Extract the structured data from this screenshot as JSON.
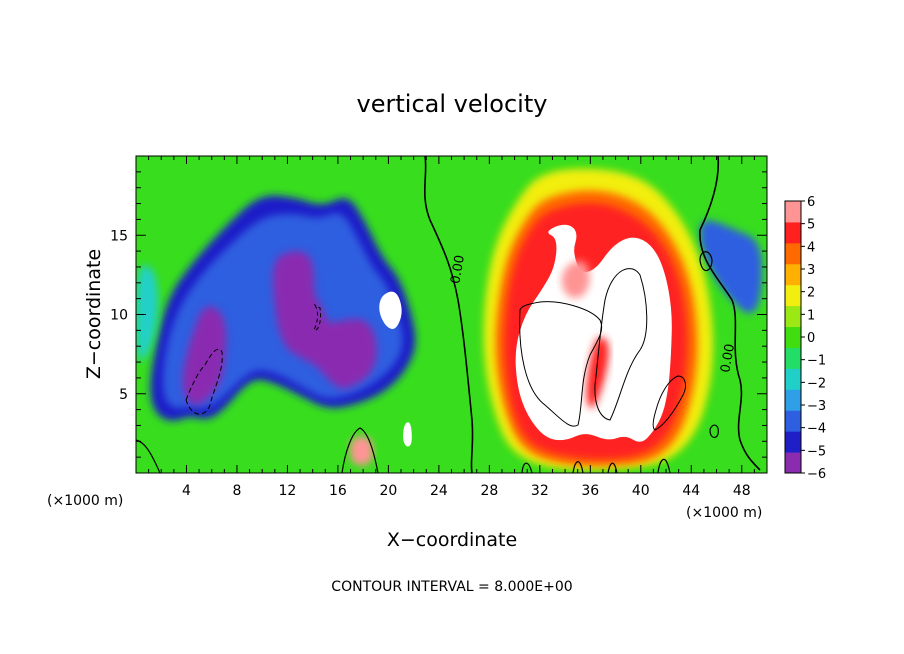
{
  "chart_data": {
    "type": "heatmap",
    "title": "vertical velocity",
    "xlabel": "X−coordinate",
    "ylabel": "Z−coordinate",
    "x_unit_left": "(×1000 m)",
    "x_unit_right": "(×1000 m)",
    "xlim": [
      0,
      50
    ],
    "ylim": [
      0,
      20
    ],
    "x_ticks": [
      "4",
      "8",
      "12",
      "16",
      "20",
      "24",
      "28",
      "32",
      "36",
      "40",
      "44",
      "48"
    ],
    "y_ticks": [
      "5",
      "10",
      "15"
    ],
    "x_tick_values": [
      4,
      8,
      12,
      16,
      20,
      24,
      28,
      32,
      36,
      40,
      44,
      48
    ],
    "y_tick_values": [
      5,
      10,
      15
    ],
    "colorbar": {
      "min": -6,
      "max": 6,
      "labels": [
        "6",
        "5",
        "4",
        "3",
        "2",
        "1",
        "0",
        "−1",
        "−2",
        "−3",
        "−4",
        "−5",
        "−6"
      ],
      "colors": [
        "#8a2bb0",
        "#1f1fc8",
        "#2e5fe0",
        "#2f9fe8",
        "#20d0c8",
        "#22dd66",
        "#40dd10",
        "#9ce814",
        "#f2ee10",
        "#ffb000",
        "#ff6a00",
        "#ff2020",
        "#ff9494"
      ]
    },
    "contour_labels": [
      {
        "text": "0.00",
        "x": 25.8,
        "y": 12.8
      },
      {
        "text": "0.00",
        "x": 47.2,
        "y": 7.2
      }
    ],
    "footer": "CONTOUR INTERVAL = 8.000E+00",
    "regions": [
      {
        "v": -5.5,
        "points": [
          [
            14.8,
            16.8
          ],
          [
            16.8,
            17.6
          ],
          [
            18.2,
            15.8
          ],
          [
            19.5,
            13.6
          ],
          [
            20.8,
            12.4
          ],
          [
            21.8,
            10.2
          ],
          [
            22.3,
            8.0
          ],
          [
            21.2,
            6.2
          ],
          [
            19.5,
            5.0
          ],
          [
            17.4,
            4.3
          ],
          [
            15.2,
            4.0
          ],
          [
            13.2,
            4.8
          ],
          [
            11.2,
            5.6
          ],
          [
            9.5,
            6.0
          ],
          [
            8.2,
            5.2
          ],
          [
            7.2,
            4.2
          ],
          [
            5.8,
            3.3
          ],
          [
            4.2,
            3.6
          ],
          [
            3.0,
            3.2
          ],
          [
            1.6,
            3.6
          ],
          [
            1.0,
            5.2
          ],
          [
            1.6,
            8.2
          ],
          [
            2.6,
            11.2
          ],
          [
            4.6,
            13.4
          ],
          [
            7.0,
            15.5
          ],
          [
            9.8,
            17.6
          ],
          [
            12.6,
            17.4
          ]
        ]
      },
      {
        "v": -4.5,
        "points": [
          [
            14.4,
            16.0
          ],
          [
            16.3,
            16.6
          ],
          [
            17.6,
            14.8
          ],
          [
            18.7,
            13.0
          ],
          [
            19.8,
            12.0
          ],
          [
            20.8,
            10.0
          ],
          [
            21.3,
            8.0
          ],
          [
            20.3,
            6.6
          ],
          [
            18.8,
            5.6
          ],
          [
            17.0,
            4.9
          ],
          [
            15.0,
            4.6
          ],
          [
            13.2,
            5.4
          ],
          [
            11.4,
            6.2
          ],
          [
            9.6,
            6.6
          ],
          [
            8.2,
            5.8
          ],
          [
            7.0,
            4.8
          ],
          [
            5.6,
            4.0
          ],
          [
            4.2,
            4.2
          ],
          [
            3.0,
            4.0
          ],
          [
            2.1,
            4.8
          ],
          [
            2.2,
            7.4
          ],
          [
            3.2,
            10.2
          ],
          [
            5.0,
            12.4
          ],
          [
            7.4,
            14.4
          ],
          [
            10.0,
            16.2
          ],
          [
            12.6,
            16.4
          ]
        ]
      },
      {
        "v": -6,
        "points": [
          [
            11.3,
            13.8
          ],
          [
            13.3,
            14.1
          ],
          [
            14.1,
            13.2
          ],
          [
            14.1,
            11.2
          ],
          [
            14.7,
            10.6
          ],
          [
            15.2,
            9.4
          ],
          [
            16.3,
            9.6
          ],
          [
            17.7,
            9.8
          ],
          [
            18.8,
            9.2
          ],
          [
            19.2,
            7.5
          ],
          [
            18.6,
            6.2
          ],
          [
            17.5,
            5.6
          ],
          [
            16.3,
            5.2
          ],
          [
            15.2,
            5.9
          ],
          [
            14.3,
            6.8
          ],
          [
            13.2,
            7.2
          ],
          [
            11.9,
            7.8
          ],
          [
            11.2,
            9.2
          ],
          [
            10.9,
            11.2
          ],
          [
            10.8,
            12.8
          ]
        ]
      },
      {
        "v": -6,
        "points": [
          [
            5.3,
            10.6
          ],
          [
            6.6,
            10.4
          ],
          [
            7.2,
            9.1
          ],
          [
            7.1,
            7.4
          ],
          [
            6.8,
            5.8
          ],
          [
            6.0,
            4.9
          ],
          [
            4.9,
            4.2
          ],
          [
            4.0,
            4.5
          ],
          [
            3.6,
            5.7
          ],
          [
            3.9,
            7.2
          ],
          [
            4.4,
            8.6
          ]
        ]
      },
      {
        "v": -4.5,
        "points": [
          [
            44.8,
            16.2
          ],
          [
            47.4,
            15.4
          ],
          [
            49.6,
            14.6
          ],
          [
            49.6,
            11.2
          ],
          [
            48.8,
            9.8
          ],
          [
            47.2,
            10.8
          ],
          [
            45.6,
            12.6
          ],
          [
            44.6,
            14.6
          ]
        ]
      },
      {
        "v": -2.5,
        "points": [
          [
            0,
            13.2
          ],
          [
            1.5,
            13.0
          ],
          [
            1.9,
            10.2
          ],
          [
            1.0,
            7.4
          ],
          [
            0,
            6.8
          ]
        ]
      },
      {
        "v": 1.5,
        "points": [
          [
            32.0,
            19.0
          ],
          [
            36.4,
            19.3
          ],
          [
            40.4,
            18.6
          ],
          [
            43.2,
            16.2
          ],
          [
            45.0,
            13.0
          ],
          [
            45.8,
            9.2
          ],
          [
            45.6,
            5.6
          ],
          [
            44.4,
            2.4
          ],
          [
            42.0,
            0.6
          ],
          [
            38.0,
            0.2
          ],
          [
            33.0,
            0.2
          ],
          [
            29.8,
            1.2
          ],
          [
            28.4,
            3.6
          ],
          [
            27.5,
            7.2
          ],
          [
            27.6,
            11.0
          ],
          [
            28.4,
            14.4
          ],
          [
            30.0,
            17.0
          ]
        ]
      },
      {
        "v": 3.5,
        "points": [
          [
            32.3,
            17.4
          ],
          [
            36.2,
            18.0
          ],
          [
            39.8,
            17.2
          ],
          [
            42.3,
            15.2
          ],
          [
            44.0,
            12.2
          ],
          [
            44.6,
            8.6
          ],
          [
            44.3,
            5.4
          ],
          [
            43.2,
            2.4
          ],
          [
            41.2,
            0.8
          ],
          [
            37.8,
            0.4
          ],
          [
            33.6,
            0.5
          ],
          [
            30.6,
            1.4
          ],
          [
            29.2,
            3.8
          ],
          [
            28.4,
            7.2
          ],
          [
            28.6,
            10.6
          ],
          [
            29.4,
            13.8
          ],
          [
            30.8,
            16.0
          ]
        ]
      },
      {
        "v": 5.2,
        "points": [
          [
            32.6,
            16.6
          ],
          [
            36.2,
            17.2
          ],
          [
            39.4,
            16.4
          ],
          [
            41.8,
            14.6
          ],
          [
            43.3,
            11.8
          ],
          [
            43.8,
            8.4
          ],
          [
            43.4,
            5.2
          ],
          [
            42.4,
            2.6
          ],
          [
            40.6,
            1.2
          ],
          [
            37.6,
            0.8
          ],
          [
            33.8,
            1.0
          ],
          [
            31.0,
            1.8
          ],
          [
            29.7,
            4.0
          ],
          [
            29.1,
            7.4
          ],
          [
            29.3,
            10.6
          ],
          [
            30.0,
            13.4
          ],
          [
            31.2,
            15.4
          ]
        ]
      },
      {
        "v": 99,
        "points": [
          [
            32.4,
            15.2
          ],
          [
            33.4,
            14.8
          ],
          [
            33.2,
            13.0
          ],
          [
            32.2,
            11.6
          ],
          [
            30.8,
            10.0
          ],
          [
            30.0,
            7.8
          ],
          [
            30.2,
            5.4
          ],
          [
            31.0,
            3.6
          ],
          [
            32.4,
            2.2
          ],
          [
            34.0,
            2.0
          ],
          [
            35.6,
            2.6
          ],
          [
            37.4,
            2.0
          ],
          [
            38.8,
            2.4
          ],
          [
            40.0,
            1.8
          ],
          [
            41.0,
            2.6
          ],
          [
            41.8,
            3.8
          ],
          [
            42.2,
            5.4
          ],
          [
            42.4,
            7.4
          ],
          [
            42.5,
            10.2
          ],
          [
            41.9,
            12.8
          ],
          [
            40.9,
            14.4
          ],
          [
            39.4,
            15.0
          ],
          [
            37.8,
            14.4
          ],
          [
            36.4,
            12.8
          ],
          [
            35.2,
            12.6
          ],
          [
            34.6,
            14.0
          ],
          [
            35.0,
            15.0
          ],
          [
            34.6,
            15.6
          ],
          [
            33.6,
            15.7
          ]
        ]
      },
      {
        "v": 5.6,
        "points": [
          [
            34.2,
            13.2
          ],
          [
            35.6,
            13.5
          ],
          [
            36.1,
            12.2
          ],
          [
            35.4,
            11.0
          ],
          [
            34.1,
            11.1
          ],
          [
            33.6,
            12.2
          ]
        ]
      },
      {
        "v": 4.5,
        "points": [
          [
            36.6,
            8.8
          ],
          [
            37.6,
            8.2
          ],
          [
            37.2,
            6.0
          ],
          [
            36.2,
            3.8
          ],
          [
            35.6,
            4.6
          ],
          [
            35.9,
            7.0
          ]
        ]
      },
      {
        "v": 5.6,
        "points": [
          [
            16.9,
            2.2
          ],
          [
            18.6,
            2.4
          ],
          [
            18.9,
            1.0
          ],
          [
            18.2,
            0.4
          ],
          [
            17.0,
            0.6
          ]
        ]
      },
      {
        "v": 99,
        "points": [
          [
            19.4,
            11.2
          ],
          [
            20.6,
            11.6
          ],
          [
            21.2,
            10.2
          ],
          [
            20.6,
            9.0
          ],
          [
            19.8,
            9.2
          ],
          [
            19.2,
            10.2
          ]
        ]
      },
      {
        "v": 99,
        "points": [
          [
            21.3,
            3.2
          ],
          [
            21.8,
            3.2
          ],
          [
            21.9,
            1.8
          ],
          [
            21.4,
            1.6
          ],
          [
            21.1,
            2.2
          ]
        ]
      }
    ]
  }
}
